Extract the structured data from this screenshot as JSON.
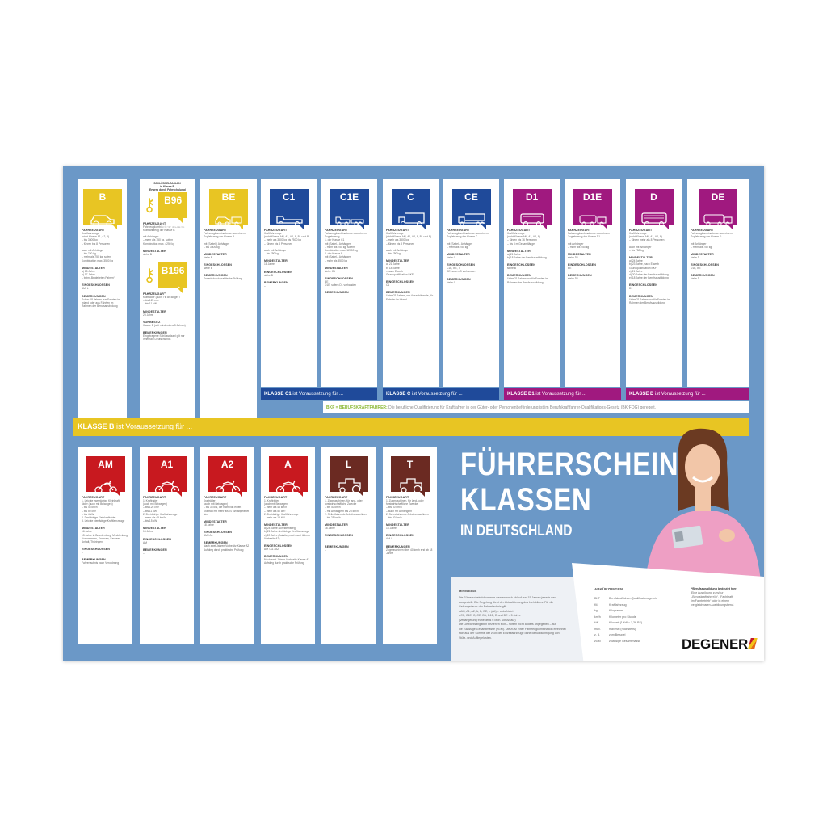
{
  "title": {
    "line1": "FÜHRERSCHEIN-",
    "line2": "KLASSEN",
    "line3": "IN DEUTSCHLAND"
  },
  "labels": {
    "fahrzeugart": "FAHRZEUGART",
    "mindestalter": "MINDESTALTER",
    "eingeschlossen": "EINGESCHLOSSEN",
    "bemerkungen": "BEMERKUNGEN",
    "vorbesitz": "VORBESITZ",
    "schluesselzahl": "SCHLÜSSELZAHLEN\nin Klasse B\n(Erwerb durch Fahrschulung)"
  },
  "colors": {
    "yellow": "#e8c523",
    "blue": "#1f4a9a",
    "purple": "#a0197f",
    "red": "#c8191f",
    "brown": "#6b2a22",
    "background": "#6b98c7"
  },
  "top_cards": [
    {
      "cls": "B",
      "color": "yellow",
      "icon": "car-icon",
      "fahrzeugart": "Kraftfahrzeuge\n(nicht Klasse A1, A2, A)\n– bis 3500 kg\n– führen bis 8 Personen\n\nauch mit Anhänger\n– bis 750 kg\n– mehr als 750 kg, sofern\n  Kombination max. 3500 kg",
      "mindestalter": "a) 18 Jahre\nb) 17 Jahre\n– beim „Begleiteten Fahren“",
      "eingeschlossen": "AM, L",
      "bemerkungen": "Schon 18 Jahren aus Fahrten im Inland oder aus Fahrten im Rahmen der Berufsausbildung"
    },
    {
      "cls": "B96",
      "color": "yellow",
      "icon": "car-trailer-icon",
      "key": true,
      "fahrzeugart": "Fahrzeugkombinationen aus einem Kraftfahrzeug der Klasse B\n\nmit Anhänger\n– mehr als 750 kg, sofern\n  Kombination max. 4250 kg",
      "mindestalter": "siehe B",
      "second": {
        "cls": "B196",
        "icon": "scooter-icon",
        "fahrzeugart": "Krafträder (auch mit Beiwagen)\n– bis 125 cm³\n– bis 11 kW",
        "mindestalter": "25 Jahre",
        "vorbesitz": "Klasse B (seit mindestens 5 Jahren)",
        "bemerkungen": "Eingetragene Schlüsselzahl gilt nur innerhalb Deutschlands"
      }
    },
    {
      "cls": "BE",
      "color": "yellow",
      "icon": "car-trailer-icon",
      "fahrzeugart": "Fahrzeugkombinationen aus einem Zugfahrzeug der Klasse B\n\nmit (Sattel-) Anhänger\n– bis 3500 kg",
      "mindestalter": "siehe B",
      "eingeschlossen": "siehe B",
      "bemerkungen": "Erwerb durch praktische Prüfung"
    },
    {
      "cls": "C1",
      "color": "blue",
      "icon": "truck-icon",
      "fahrzeugart": "Kraftfahrzeuge\n(nicht Klasse AM, A1, A2, A, B1 und B)\n– mehr als 3500 kg bis 7500 kg\n– führen bis 8 Personen\n\nauch mit Anhänger\n– bis 750 kg",
      "mindestalter": "18 Jahre",
      "eingeschlossen": "siehe B",
      "bemerkungen": "–"
    },
    {
      "cls": "C1E",
      "color": "blue",
      "icon": "truck-trailer-icon",
      "fahrzeugart": "Fahrzeugkombinationen aus einem Zugfahrzeug\n1. der Klasse C1\n   mit (Sattel-) Anhänger\n   – mehr als 750 kg, sofern\n     Kombination max. 12000 kg\n2. der Klasse B\n   mit (Sattel-) Anhänger\n   – mehr als 3500 kg",
      "mindestalter": "siehe C1",
      "eingeschlossen": "BE\nD1E, sofern D1 vorhanden",
      "bemerkungen": "–"
    },
    {
      "cls": "C",
      "color": "blue",
      "icon": "lorry-icon",
      "fahrzeugart": "Kraftfahrzeuge\n(nicht Klasse AM, A1, A2, A, B1 und B)\n– mehr als 3500 kg\n– führen bis 8 Personen\n\nauch mit Anhänger\n– bis 750 kg",
      "mindestalter": "a) 21 Jahre\nb) 18 Jahre\n– nach Erwerb\n  Grundqualifikation BKF",
      "eingeschlossen": "C1",
      "bemerkungen": "Unter 21 Jahren, nur Auszubildende, für Fahrten im Inland"
    },
    {
      "cls": "CE",
      "color": "blue",
      "icon": "semi-truck-icon",
      "fahrzeugart": "Fahrzeugkombinationen aus einem Zugfahrzeug der Klasse C\n\nmit (Sattel-) Anhänger\n– mehr als 750 kg",
      "mindestalter": "siehe C",
      "eingeschlossen": "C1E, BE, T\nDE, sofern D vorhanden",
      "bemerkungen": "siehe C"
    },
    {
      "cls": "D1",
      "color": "purple",
      "icon": "minibus-icon",
      "fahrzeugart": "Kraftfahrzeuge\n(nicht Klasse AM, A1, A2, A)\n– führen bis 16 Personen\n– bis 8 m Gesamtlänge",
      "mindestalter": "a) 21 Jahre\nb) 18 Jahre der Berufsausbildung",
      "eingeschlossen": "siehe B",
      "bemerkungen": "Unter 21 Jahren nur für Fahrten im Rahmen der Berufsausbildung"
    },
    {
      "cls": "D1E",
      "color": "purple",
      "icon": "minibus-trailer-icon",
      "fahrzeugart": "Fahrzeugkombinationen aus einem Zugfahrzeug der Klasse D1\n\nmit Anhänger\n– mehr als 750 kg",
      "mindestalter": "siehe D1",
      "eingeschlossen": "BE",
      "bemerkungen": "siehe D1"
    },
    {
      "cls": "D",
      "color": "purple",
      "icon": "bus-icon",
      "fahrzeugart": "Kraftfahrzeuge\n(nicht Klasse AM, A1, A2, A)\n– führen mehr als 8 Personen\n\nauch mit Anhänger\n– bis 750 kg",
      "mindestalter": "a) 24 Jahre\nb) 23 Jahre, nach Erwerb Grundqualifikation BKF\nc) 21 Jahre\nd) 20 Jahre der Berufsausbildung\ne) 18 Jahre der Berufsausbildung",
      "eingeschlossen": "D1",
      "bemerkungen": "Unter 21 Jahren nur für Fahrten im Rahmen der Berufsausbildung"
    },
    {
      "cls": "DE",
      "color": "purple",
      "icon": "bus-trailer-icon",
      "fahrzeugart": "Fahrzeugkombinationen aus einem Zugfahrzeug der Klasse D\n\nmit Anhänger\n– mehr als 750 kg",
      "mindestalter": "siehe D",
      "eingeschlossen": "D1E, BE",
      "bemerkungen": "siehe D"
    }
  ],
  "bottom_cards": [
    {
      "cls": "AM",
      "color": "red",
      "icon": "scooter-icon",
      "fahrzeugart": "1. Leichte zweirädrige Kleinkraft-\n   räder (auch mit Beiwagen)\n   – bis 45 km/h\n   – bis 50 cm³\n   – bis 4 kW\n2. Dreirädrige Kleinkrafträder\n3. Leichte vierrädrige Kraftfahrzeuge",
      "mindestalter": "16 Jahre\n15 Jahre in Brandenburg, Mecklenburg-Vorpommern, Sachsen, Sachsen-Anhalt, Thüringen",
      "eingeschlossen": "–",
      "bemerkungen": "Fahrerlaubnis nach Verordnung"
    },
    {
      "cls": "A1",
      "color": "red",
      "icon": "motorcycle-icon",
      "fahrzeugart": "1. Krafträder\n   (auch mit Beiwagen)\n   – bis 125 cm³\n   – bis 11 kW\n2. Dreirädrige Kraftfahrzeuge\n   – mehr als 45 km/h\n   – bis 15 kW",
      "mindestalter": "16 Jahre",
      "eingeschlossen": "AM",
      "bemerkungen": "–"
    },
    {
      "cls": "A2",
      "color": "red",
      "icon": "motorcycle-icon",
      "fahrzeugart": "Krafträder\n(auch mit Beiwagen)\n– bis 35 kW, die nicht von einem Kraftrad mit mehr als 70 kW abgeleitet sind",
      "mindestalter": "18 Jahre",
      "eingeschlossen": "AM / A1",
      "bemerkungen": "Nach zwei Jahren Vorbesitz Klasse A2 Aufstieg durch praktische Prüfung"
    },
    {
      "cls": "A",
      "color": "red",
      "icon": "motorcycle-icon",
      "fahrzeugart": "1. Krafträder\n   (auch mit Beiwagen)\n   – mehr als 45 km/h\n   – mehr als 50 cm³\n2. Dreirädrige Kraftfahrzeuge\n   – mehr als 15 kW",
      "mindestalter": "a) 24 Jahre (Direkteinstieg)\nb) 21 Jahre dreirädrige Kraftfahrzeuge\nc) 20 Jahre (Aufstieg nach zwei Jahren Vorbesitz A2)",
      "eingeschlossen": "AM / A1 / A2",
      "bemerkungen": "Nach zwei Jahren Vorbesitz Klasse A2 Aufstieg durch praktische Prüfung"
    },
    {
      "cls": "L",
      "color": "brown",
      "icon": "tractor-icon",
      "fahrzeugart": "1. Zugmaschinen, für land- oder forstwirtschaftliche Zwecke\n   – bis 40 km/h\n   – mit Anhängern bis 25 km/h\n2. Selbstfahrende Arbeitsmaschinen\n   – bis 25 km/h",
      "mindestalter": "16 Jahre",
      "eingeschlossen": "–",
      "bemerkungen": "–"
    },
    {
      "cls": "T",
      "color": "brown",
      "icon": "tractor-icon",
      "fahrzeugart": "1. Zugmaschinen, für land- oder forstwirtschaftliche Zwecke\n   – bis 60 km/h\n   – auch mit Anhängern\n2. Selbstfahrende Arbeitsmaschinen\n   – bis 40 km/h",
      "mindestalter": "16 Jahre",
      "eingeschlossen": "AM / L",
      "bemerkungen": "Zugmaschinen über 40 km/h erst ab 18 Jahre"
    }
  ],
  "bars": [
    {
      "key": "KLASSE C1",
      "rest": " ist Voraussetzung für ...",
      "color": "blue"
    },
    {
      "key": "KLASSE C",
      "rest": " ist Voraussetzung für ...",
      "color": "blue"
    },
    {
      "key": "KLASSE D1",
      "rest": " ist Voraussetzung für ...",
      "color": "purple"
    },
    {
      "key": "KLASSE D",
      "rest": " ist Voraussetzung für ...",
      "color": "purple"
    }
  ],
  "bkf": {
    "key": "BKF = BERUFSKRAFTFAHRER:",
    "text": " Die berufliche Qualifizierung für Kraftfahrer in der Güter- oder Personenbeförderung ist im Berufskraftfahrer-Qualifikations-Gesetz (BKrFQG) geregelt."
  },
  "klasse_b": {
    "key": "KLASSE B",
    "rest": " ist Voraussetzung für ..."
  },
  "hinweise": {
    "title": "HINWEISE",
    "lines": [
      "Die Führerscheindokumente werden nach Ablauf von 15 Jahren jeweils neu",
      "ausgestellt. Die Regelung dient der Aktualisierung des Lichtbildes. Für die",
      "Geltungsdauer der Fahrerlaubnis gilt:",
      "• AM, A1, A2, A, B, BE, L (Alt) = unbefristet",
      "• C1, C1E, C, CE, D1, D1E, D und DE = 5 Jahre",
      "  (Verlängerung frühestens 6 Mon. vor Ablauf)",
      "Die Gewichtsangaben beziehen sich – sofern nicht anders angegeben – auf",
      "die zulässige Gesamtmasse (zGM). Die zGM einer Fahrzeugkombination errechnet",
      "sich aus der Summe der zGM der Einzelfahrzeuge ohne Berücksichtigung von",
      "Stütz- und Aufliegelasten."
    ]
  },
  "abkuerzungen": {
    "title": "ABKÜRZUNGEN",
    "items": [
      [
        "BKF",
        "Berufskraftfahrer-Qualifikationsgesetz"
      ],
      [
        "Kfz",
        "Kraftfahrzeug"
      ],
      [
        "kg",
        "Kilogramm"
      ],
      [
        "km/h",
        "Kilometer pro Stunde"
      ],
      [
        "kW",
        "Kilowatt (1 kW = 1,36 PS)"
      ],
      [
        "max.",
        "maximal (höchstens)"
      ],
      [
        "z. B.",
        "zum Beispiel"
      ],
      [
        "zGM",
        "zulässige Gesamtmasse"
      ]
    ]
  },
  "footnote": {
    "title": "*Berufsausbildung bedeutet hier:",
    "lines": [
      "Eine Ausbildung zum/zur",
      "„Berufskraftfahrer/in“, „Fachkraft",
      "im Fahrbetrieb“ oder in einem",
      "vergleichbaren Ausbildungsberuf."
    ]
  },
  "brand": "DEGENER"
}
